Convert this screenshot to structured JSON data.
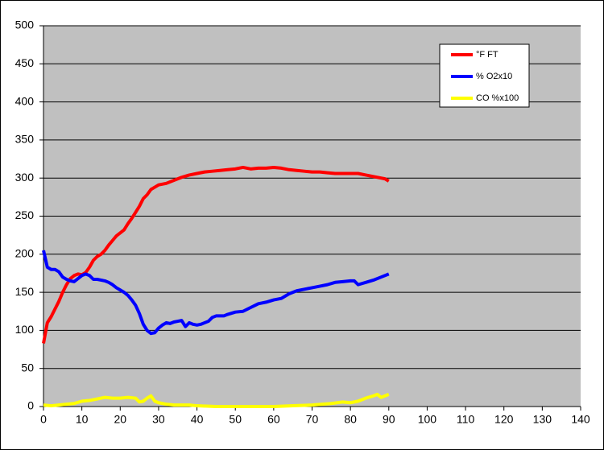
{
  "chart_data": {
    "type": "line",
    "xlim": [
      0,
      140
    ],
    "xticks": [
      0,
      10,
      20,
      30,
      40,
      50,
      60,
      70,
      80,
      90,
      100,
      110,
      120,
      130,
      140
    ],
    "ylim": [
      0,
      500
    ],
    "yticks": [
      0,
      50,
      100,
      150,
      200,
      250,
      300,
      350,
      400,
      450,
      500
    ],
    "grid": true,
    "legend": "top-right",
    "series": [
      {
        "name": "°F FT",
        "color": "#ff0000",
        "x": [
          0,
          1,
          2,
          3,
          4,
          5,
          6,
          7,
          8,
          9,
          10,
          11,
          12,
          13,
          14,
          15,
          16,
          17,
          18,
          19,
          20,
          21,
          22,
          23,
          24,
          25,
          26,
          27,
          28,
          29,
          30,
          32,
          34,
          36,
          38,
          40,
          42,
          44,
          46,
          48,
          50,
          52,
          54,
          56,
          58,
          60,
          62,
          64,
          66,
          68,
          70,
          72,
          74,
          76,
          78,
          80,
          82,
          84,
          86,
          88,
          89,
          90
        ],
        "values": [
          83,
          110,
          118,
          128,
          138,
          150,
          160,
          168,
          172,
          174,
          173,
          176,
          183,
          192,
          197,
          200,
          205,
          212,
          218,
          224,
          228,
          232,
          240,
          247,
          255,
          263,
          273,
          278,
          285,
          288,
          291,
          293,
          297,
          301,
          304,
          306,
          308,
          309,
          310,
          311,
          312,
          314,
          312,
          313,
          313,
          314,
          313,
          311,
          310,
          309,
          308,
          308,
          307,
          306,
          306,
          306,
          306,
          304,
          302,
          300,
          299,
          296
        ]
      },
      {
        "name": "% O2x10",
        "color": "#0000ff",
        "x": [
          0,
          1,
          2,
          3,
          4,
          5,
          6,
          7,
          8,
          9,
          10,
          11,
          12,
          13,
          14,
          15,
          16,
          17,
          18,
          19,
          20,
          21,
          22,
          23,
          24,
          25,
          26,
          27,
          28,
          29,
          30,
          31,
          32,
          33,
          34,
          35,
          36,
          37,
          38,
          39,
          40,
          41,
          42,
          43,
          44,
          45,
          46,
          47,
          48,
          50,
          52,
          54,
          56,
          58,
          60,
          62,
          64,
          66,
          68,
          70,
          72,
          74,
          76,
          78,
          80,
          81,
          82,
          84,
          86,
          88,
          90
        ],
        "values": [
          205,
          183,
          180,
          180,
          177,
          170,
          167,
          165,
          164,
          168,
          172,
          174,
          172,
          167,
          167,
          166,
          165,
          163,
          160,
          156,
          153,
          150,
          146,
          140,
          133,
          122,
          108,
          100,
          96,
          97,
          103,
          107,
          110,
          109,
          111,
          112,
          113,
          105,
          110,
          108,
          107,
          108,
          110,
          112,
          117,
          119,
          119,
          119,
          121,
          124,
          125,
          130,
          135,
          137,
          140,
          142,
          148,
          152,
          154,
          156,
          158,
          160,
          163,
          164,
          165,
          165,
          160,
          163,
          166,
          170,
          174
        ]
      },
      {
        "name": "CO %x100",
        "color": "#ffff00",
        "x": [
          0,
          2,
          4,
          6,
          8,
          10,
          12,
          14,
          16,
          18,
          20,
          22,
          24,
          25,
          26,
          27,
          28,
          29,
          30,
          32,
          34,
          36,
          38,
          40,
          45,
          50,
          55,
          60,
          65,
          70,
          75,
          78,
          80,
          82,
          84,
          86,
          87,
          88,
          90
        ],
        "values": [
          2,
          1,
          2,
          3,
          4,
          7,
          8,
          10,
          12,
          11,
          11,
          12,
          11,
          6,
          7,
          11,
          14,
          7,
          5,
          3,
          2,
          2,
          2,
          1,
          0,
          0,
          0,
          0,
          1,
          2,
          4,
          6,
          5,
          7,
          11,
          14,
          16,
          12,
          16
        ]
      }
    ]
  }
}
